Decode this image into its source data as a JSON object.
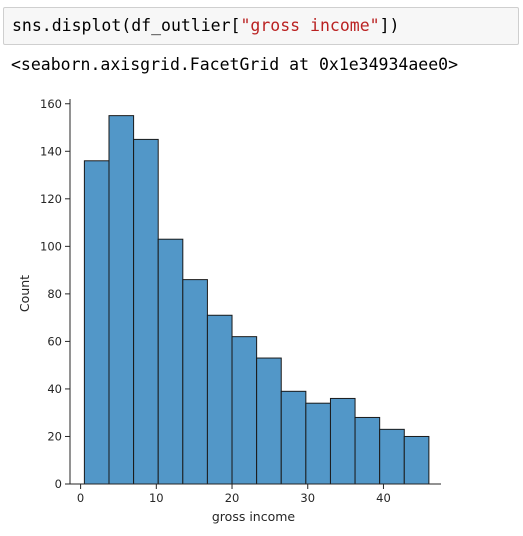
{
  "input_cell": {
    "code_prefix": "sns.displot(df_outlier[",
    "code_string": "\"gross income\"",
    "code_suffix": "])"
  },
  "output": {
    "repr": "<seaborn.axisgrid.FacetGrid at 0x1e34934aee0>"
  },
  "chart_data": {
    "type": "bar",
    "xlabel": "gross income",
    "ylabel": "Count",
    "x_ticks": [
      0,
      10,
      20,
      30,
      40
    ],
    "y_ticks": [
      0,
      20,
      40,
      60,
      80,
      100,
      120,
      140,
      160
    ],
    "xlim": [
      -1.4,
      47.6
    ],
    "ylim": [
      0,
      162
    ],
    "bar_color": "#5297c8",
    "edge_color": "#1a1a1a",
    "bin_edges": [
      0.5,
      3.75,
      7.0,
      10.25,
      13.5,
      16.75,
      20.0,
      23.25,
      26.5,
      29.75,
      33.0,
      36.25,
      39.5,
      42.75,
      46.0
    ],
    "values": [
      136,
      155,
      145,
      103,
      86,
      71,
      62,
      53,
      39,
      34,
      36,
      28,
      23,
      20
    ],
    "grid": false,
    "legend": "none"
  }
}
